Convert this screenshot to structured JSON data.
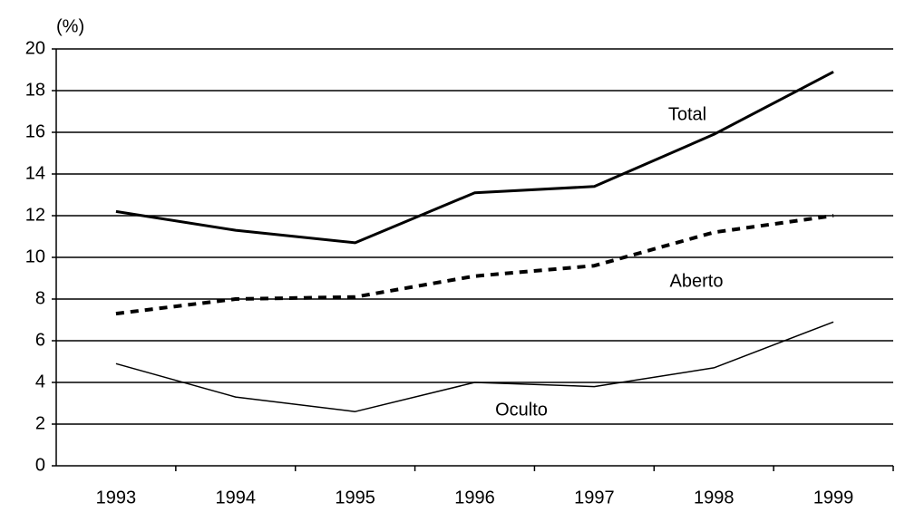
{
  "chart_data": {
    "type": "line",
    "y_label": "(%)",
    "categories": [
      "1993",
      "1994",
      "1995",
      "1996",
      "1997",
      "1998",
      "1999"
    ],
    "series": [
      {
        "name": "Total",
        "color": "#000000",
        "line_style": "solid",
        "line_width": 3,
        "values": [
          12.2,
          11.3,
          10.7,
          13.1,
          13.4,
          15.9,
          18.9
        ]
      },
      {
        "name": "Aberto",
        "color": "#000000",
        "line_style": "dashed",
        "line_width": 4,
        "values": [
          7.3,
          8.0,
          8.1,
          9.1,
          9.6,
          11.2,
          12.0
        ]
      },
      {
        "name": "Oculto",
        "color": "#000000",
        "line_style": "solid",
        "line_width": 1.5,
        "values": [
          4.9,
          3.3,
          2.6,
          4.0,
          3.8,
          4.7,
          6.9
        ]
      }
    ],
    "ylim": [
      0,
      20
    ],
    "yticks": [
      0,
      2,
      4,
      6,
      8,
      10,
      12,
      14,
      16,
      18,
      20
    ],
    "grid": true
  }
}
